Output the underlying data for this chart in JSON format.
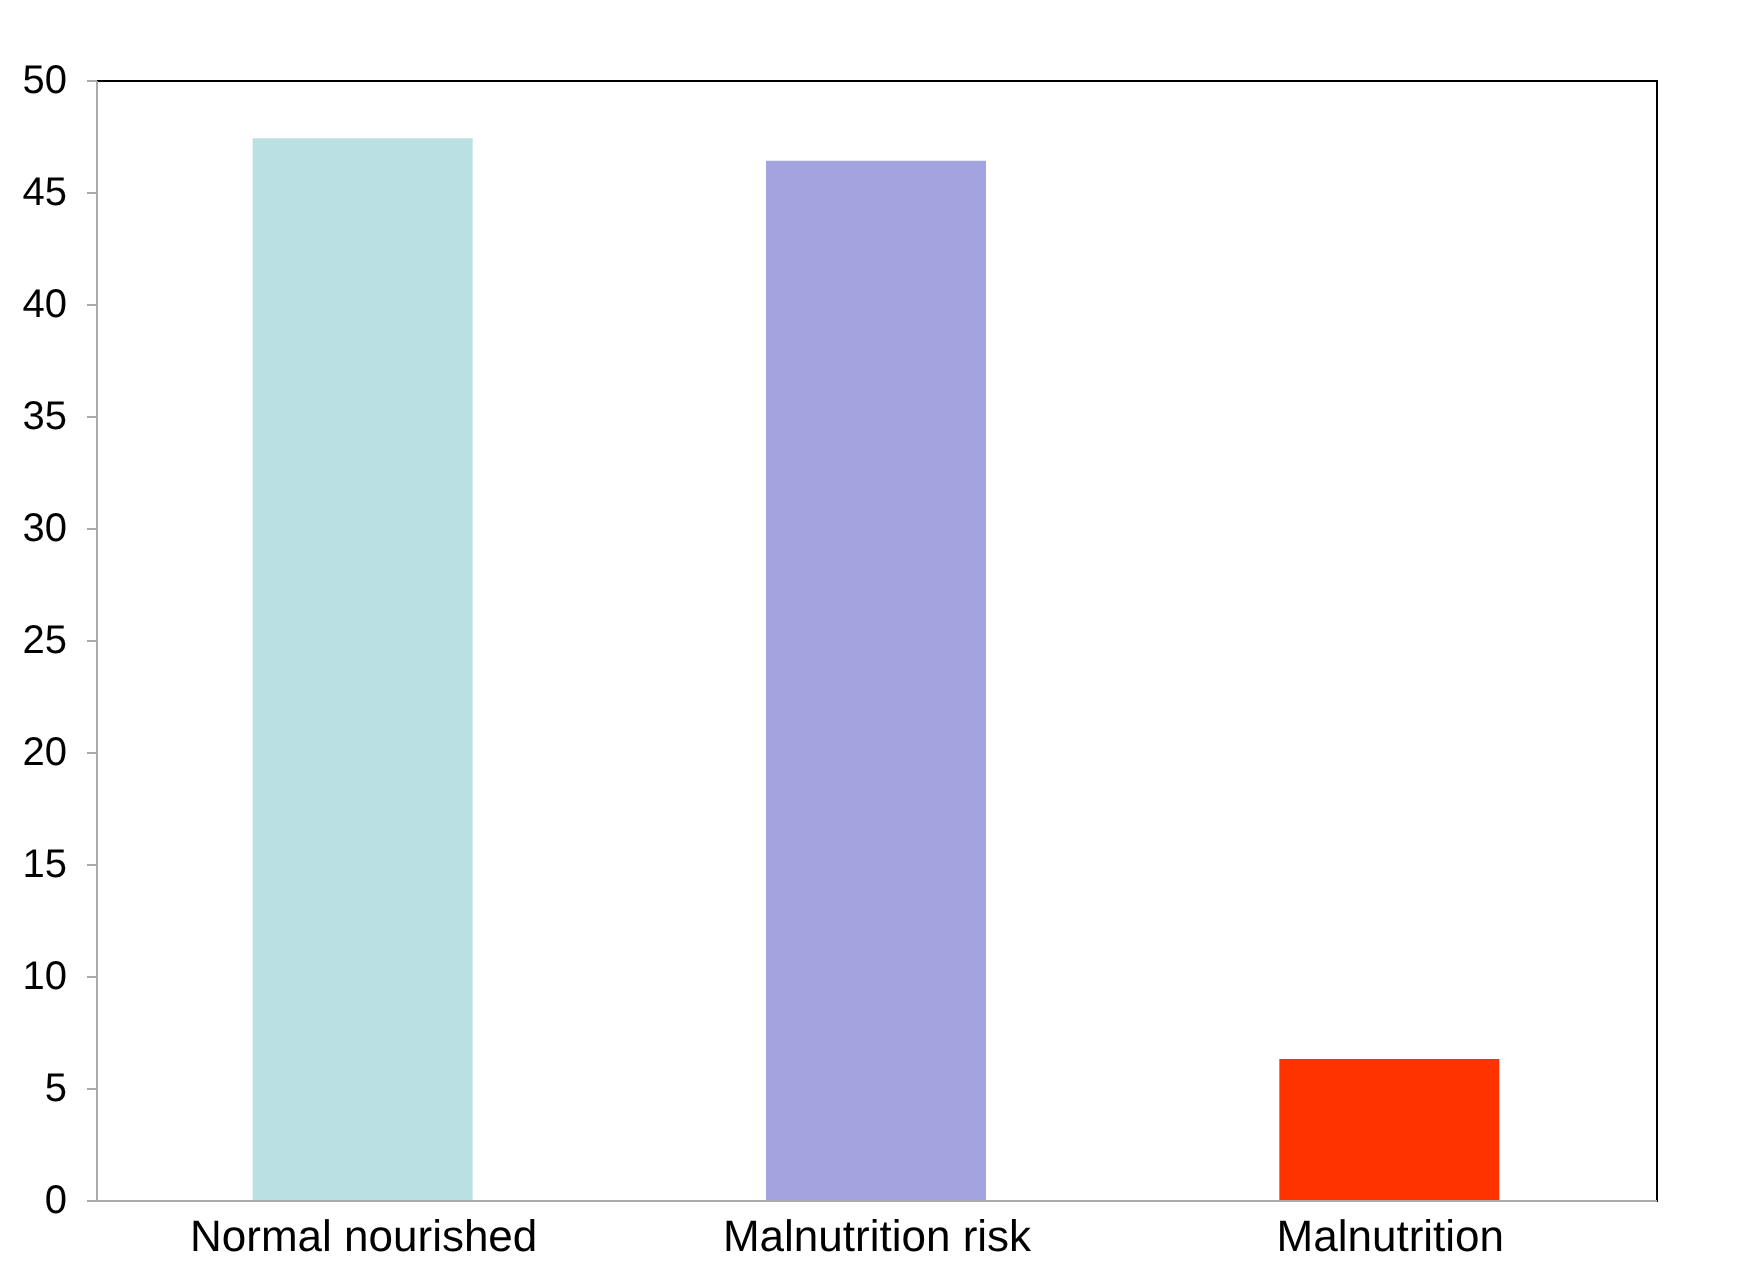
{
  "chart_data": {
    "type": "bar",
    "categories": [
      "Normal nourished",
      "Malnutrition risk",
      "Malnutrition"
    ],
    "values": [
      47.4,
      46.4,
      6.3
    ],
    "colors": [
      "#bae0e3",
      "#a3a3df",
      "#ff3300"
    ],
    "ylim": [
      0,
      50
    ],
    "yticks": [
      0,
      5,
      10,
      15,
      20,
      25,
      30,
      35,
      40,
      45,
      50
    ],
    "grid": false
  }
}
